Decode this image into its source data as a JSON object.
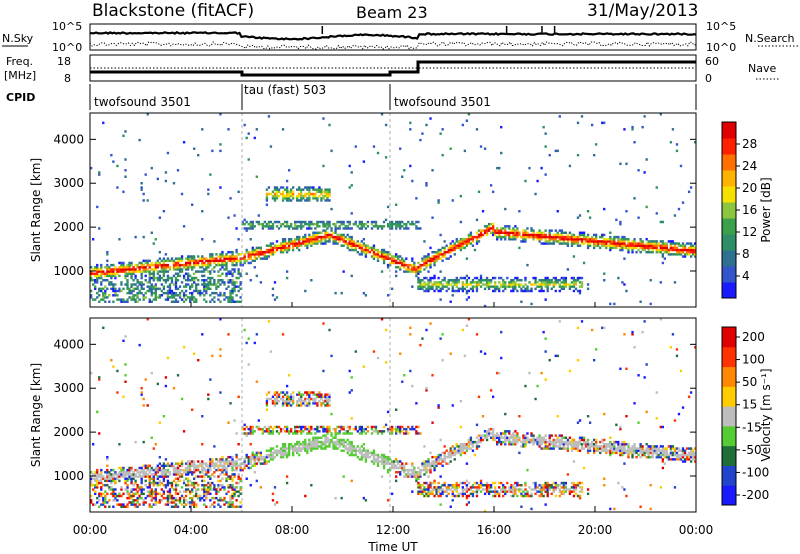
{
  "header": {
    "station": "Blackstone (fitACF)",
    "beam": "Beam 23",
    "date": "31/May/2013"
  },
  "nsky_panel": {
    "left_label": "N.Sky",
    "left_ticks": [
      "10^5",
      "10^0"
    ],
    "right_label": "N.Search",
    "right_ticks": [
      "10^5",
      "10^0"
    ]
  },
  "freq_panel": {
    "left_label_line1": "Freq.",
    "left_label_line2": "[MHz]",
    "left_ticks": [
      "18",
      "8"
    ],
    "right_label": "Nave",
    "right_ticks": [
      "60",
      "0"
    ]
  },
  "cpid_panel": {
    "label": "CPID",
    "modes": [
      {
        "name": "twofsound 3501",
        "start_hour": 0,
        "end_hour": 6
      },
      {
        "name": "tau (fast) 503",
        "start_hour": 6,
        "end_hour": 13
      },
      {
        "name": "twofsound 3501",
        "start_hour": 13,
        "end_hour": 24
      }
    ]
  },
  "time_axis": {
    "label": "Time UT",
    "ticks": [
      "00:00",
      "04:00",
      "08:00",
      "12:00",
      "16:00",
      "20:00",
      "00:00"
    ]
  },
  "chart_data": [
    {
      "type": "heatmap",
      "name": "power",
      "ylabel": "Slant Range [km]",
      "yticks": [
        "1000",
        "2000",
        "3000",
        "4000"
      ],
      "y_range_km": [
        180,
        4600
      ],
      "x_range_hours": [
        0,
        24
      ],
      "colorbar": {
        "label": "Power [dB]",
        "range": [
          0,
          32
        ],
        "ticks": [
          "4",
          "8",
          "12",
          "16",
          "20",
          "24",
          "28"
        ],
        "colors": [
          "#1a1aff",
          "#3355cc",
          "#2f6f8f",
          "#2e8f66",
          "#3aa04a",
          "#8cc63f",
          "#f5e000",
          "#ffb300",
          "#ff7000",
          "#ff2000",
          "#e00000"
        ]
      },
      "features": [
        {
          "desc_hours": [
            0,
            6
          ],
          "range_km": [
            950,
            1350
          ],
          "peak_db": 26
        },
        {
          "desc_hours": [
            6,
            9.5
          ],
          "range_km": [
            1600,
            1900
          ],
          "peak_db": 24
        },
        {
          "desc_hours": [
            7,
            9.5
          ],
          "range_km": [
            2500,
            3000
          ],
          "peak_db": 20
        },
        {
          "desc_hours": [
            9.5,
            13
          ],
          "range_km": [
            1000,
            1700
          ],
          "peak_db": 24
        },
        {
          "desc_hours": [
            13,
            24
          ],
          "range_km": [
            1300,
            2100
          ],
          "peak_db": 16
        },
        {
          "desc_hours": [
            13,
            19.5
          ],
          "range_km": [
            500,
            900
          ],
          "peak_db": 14
        }
      ]
    },
    {
      "type": "heatmap",
      "name": "velocity",
      "ylabel": "Slant Range [km]",
      "yticks": [
        "1000",
        "2000",
        "3000",
        "4000"
      ],
      "y_range_km": [
        180,
        4600
      ],
      "x_range_hours": [
        0,
        24
      ],
      "colorbar": {
        "label": "Velocity [m s⁻¹]",
        "range": [
          -250,
          250
        ],
        "ticks": [
          "200",
          "100",
          "50",
          "15",
          "-15",
          "-50",
          "-100",
          "-200"
        ],
        "colors": [
          "#1a1aff",
          "#2244cc",
          "#1f6e3a",
          "#55cc33",
          "#bdbdbd",
          "#ffcc00",
          "#ff8800",
          "#ff3300",
          "#e00000"
        ]
      }
    }
  ]
}
